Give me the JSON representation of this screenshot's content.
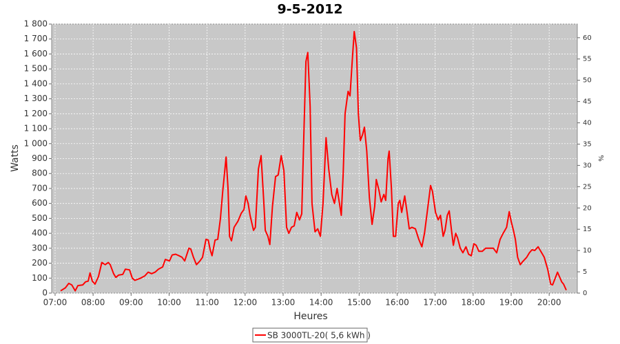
{
  "chart_data": {
    "type": "line",
    "title": "9-5-2012",
    "x_label": "Heures",
    "y_label": "Watts",
    "y2_label": "%",
    "xlim": [
      6.91,
      20.74
    ],
    "xticks": [
      {
        "value": 7,
        "label": "07:00"
      },
      {
        "value": 8,
        "label": "08:00"
      },
      {
        "value": 9,
        "label": "09:00"
      },
      {
        "value": 10,
        "label": "10:00"
      },
      {
        "value": 11,
        "label": "11:00"
      },
      {
        "value": 12,
        "label": "12:00"
      },
      {
        "value": 13,
        "label": "13:00"
      },
      {
        "value": 14,
        "label": "14:00"
      },
      {
        "value": 15,
        "label": "15:00"
      },
      {
        "value": 16,
        "label": "16:00"
      },
      {
        "value": 17,
        "label": "17:00"
      },
      {
        "value": 18,
        "label": "18:00"
      },
      {
        "value": 19,
        "label": "19:00"
      },
      {
        "value": 20,
        "label": "20:00"
      }
    ],
    "ylim": [
      0,
      1800
    ],
    "yticks": [
      0,
      100,
      200,
      300,
      400,
      500,
      600,
      700,
      800,
      900,
      {
        "value": 1000,
        "label": "1 000"
      },
      {
        "value": 1100,
        "label": "1 100"
      },
      {
        "value": 1200,
        "label": "1 200"
      },
      {
        "value": 1300,
        "label": "1 300"
      },
      {
        "value": 1400,
        "label": "1 400"
      },
      {
        "value": 1500,
        "label": "1 500"
      },
      {
        "value": 1600,
        "label": "1 600"
      },
      {
        "value": 1700,
        "label": "1 700"
      },
      {
        "value": 1800,
        "label": "1 800"
      }
    ],
    "y2lim": [
      0,
      63.2
    ],
    "y2ticks": [
      0,
      5,
      10,
      15,
      20,
      25,
      30,
      35,
      40,
      45,
      50,
      55,
      60
    ],
    "grid": true,
    "background": "#c8c8c8",
    "x": [
      7.145,
      7.27,
      7.36,
      7.44,
      7.53,
      7.6,
      7.73,
      7.8,
      7.87,
      7.92,
      7.98,
      8.05,
      8.14,
      8.23,
      8.32,
      8.4,
      8.45,
      8.54,
      8.6,
      8.67,
      8.78,
      8.85,
      8.96,
      9.03,
      9.1,
      9.25,
      9.36,
      9.45,
      9.54,
      9.63,
      9.72,
      9.83,
      9.9,
      10.01,
      10.08,
      10.17,
      10.26,
      10.34,
      10.41,
      10.52,
      10.57,
      10.64,
      10.72,
      10.81,
      10.88,
      10.97,
      11.03,
      11.08,
      11.13,
      11.21,
      11.28,
      11.35,
      11.41,
      11.5,
      11.55,
      11.59,
      11.64,
      11.71,
      11.81,
      11.9,
      11.97,
      12.02,
      12.08,
      12.13,
      12.22,
      12.27,
      12.35,
      12.42,
      12.49,
      12.53,
      12.6,
      12.65,
      12.72,
      12.8,
      12.87,
      12.95,
      13.02,
      13.09,
      13.15,
      13.22,
      13.29,
      13.36,
      13.43,
      13.49,
      13.55,
      13.6,
      13.65,
      13.71,
      13.76,
      13.84,
      13.91,
      13.98,
      14.05,
      14.13,
      14.2,
      14.28,
      14.35,
      14.42,
      14.47,
      14.53,
      14.58,
      14.63,
      14.71,
      14.76,
      14.82,
      14.87,
      14.93,
      14.98,
      15.03,
      15.09,
      15.14,
      15.2,
      15.27,
      15.34,
      15.41,
      15.45,
      15.52,
      15.58,
      15.65,
      15.7,
      15.76,
      15.79,
      15.85,
      15.9,
      15.96,
      16.03,
      16.07,
      16.12,
      16.2,
      16.25,
      16.32,
      16.39,
      16.48,
      16.57,
      16.65,
      16.72,
      16.79,
      16.88,
      16.93,
      17.01,
      17.08,
      17.14,
      17.21,
      17.26,
      17.32,
      17.37,
      17.43,
      17.48,
      17.54,
      17.59,
      17.66,
      17.73,
      17.81,
      17.88,
      17.95,
      18.02,
      18.08,
      18.15,
      18.24,
      18.33,
      18.44,
      18.53,
      18.62,
      18.71,
      18.79,
      18.88,
      18.95,
      19.0,
      19.06,
      19.11,
      19.17,
      19.24,
      19.3,
      19.41,
      19.48,
      19.55,
      19.62,
      19.71,
      19.78,
      19.87,
      19.96,
      20.04,
      20.09,
      20.16,
      20.22,
      20.27,
      20.33,
      20.38,
      20.45
    ],
    "series": [
      {
        "name": "SB 3000TL-20( 5,6 kWh )",
        "color": "#ff0000",
        "values": [
          15,
          35,
          65,
          55,
          15,
          50,
          55,
          75,
          80,
          135,
          80,
          60,
          110,
          205,
          190,
          205,
          190,
          130,
          105,
          120,
          125,
          160,
          155,
          100,
          85,
          100,
          115,
          140,
          130,
          140,
          160,
          175,
          225,
          215,
          255,
          260,
          250,
          240,
          215,
          300,
          295,
          240,
          190,
          215,
          240,
          360,
          355,
          290,
          250,
          355,
          360,
          500,
          680,
          910,
          700,
          380,
          350,
          440,
          480,
          535,
          560,
          650,
          600,
          520,
          420,
          440,
          830,
          920,
          620,
          420,
          380,
          325,
          580,
          780,
          790,
          920,
          820,
          440,
          400,
          440,
          450,
          540,
          490,
          530,
          1100,
          1550,
          1610,
          1250,
          600,
          410,
          430,
          380,
          600,
          1040,
          830,
          660,
          600,
          700,
          620,
          520,
          800,
          1200,
          1350,
          1320,
          1560,
          1750,
          1640,
          1200,
          1020,
          1060,
          1110,
          950,
          640,
          460,
          580,
          760,
          690,
          610,
          660,
          620,
          900,
          950,
          700,
          380,
          380,
          600,
          620,
          540,
          650,
          560,
          430,
          440,
          430,
          360,
          310,
          400,
          540,
          720,
          680,
          540,
          490,
          520,
          380,
          420,
          520,
          550,
          420,
          320,
          400,
          370,
          300,
          270,
          310,
          260,
          250,
          330,
          320,
          280,
          280,
          300,
          300,
          300,
          270,
          360,
          400,
          440,
          545,
          480,
          420,
          360,
          240,
          190,
          210,
          240,
          270,
          290,
          285,
          310,
          280,
          240,
          160,
          60,
          55,
          100,
          140,
          110,
          75,
          60,
          20
        ]
      }
    ]
  }
}
